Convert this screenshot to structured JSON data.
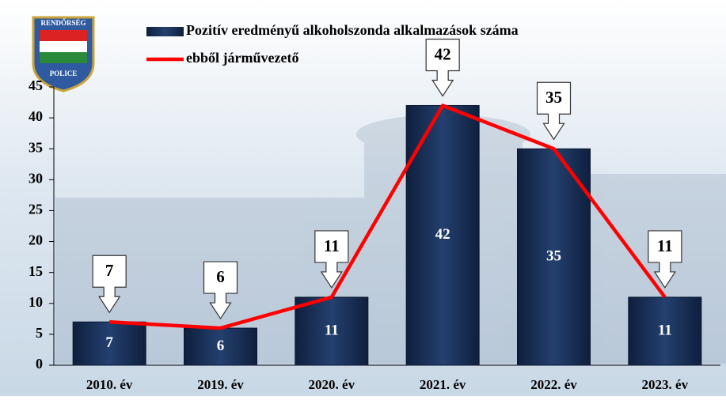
{
  "logo": {
    "top": "RENDŐRSÉG",
    "bottom": "POLICE"
  },
  "chart_data": {
    "type": "bar_line",
    "categories": [
      "2010. év",
      "2019. év",
      "2020. év",
      "2021. év",
      "2022. év",
      "2023. év"
    ],
    "series": [
      {
        "name": "Pozitív eredményű alkoholszonda alkalmazások száma",
        "color": "#1a2f57",
        "type": "bar",
        "values": [
          7,
          6,
          11,
          42,
          35,
          11
        ]
      },
      {
        "name": "ebből járművezető",
        "color": "#ff0000",
        "type": "line",
        "values": [
          7,
          6,
          11,
          42,
          35,
          11
        ]
      }
    ],
    "ylim": [
      0,
      45
    ],
    "yticks": [
      0,
      5,
      10,
      15,
      20,
      25,
      30,
      35,
      40,
      45
    ]
  }
}
